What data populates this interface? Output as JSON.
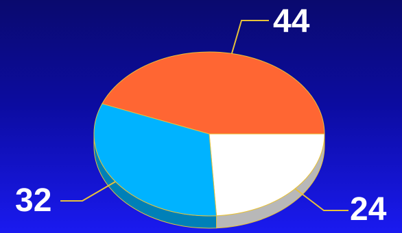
{
  "chart_data": {
    "type": "pie",
    "three_d": true,
    "title": "",
    "legend": "none",
    "slices": [
      {
        "label": "44",
        "value": 44,
        "color": "#ff6633",
        "side_color": "#c44a1f"
      },
      {
        "label": "24",
        "value": 24,
        "color": "#ffffff",
        "side_color": "#b8b8b8"
      },
      {
        "label": "32",
        "value": 32,
        "color": "#00b3ff",
        "side_color": "#0080b8"
      }
    ],
    "edge_color": "#e8c23a",
    "leader_line_color": "#e8c23a"
  }
}
